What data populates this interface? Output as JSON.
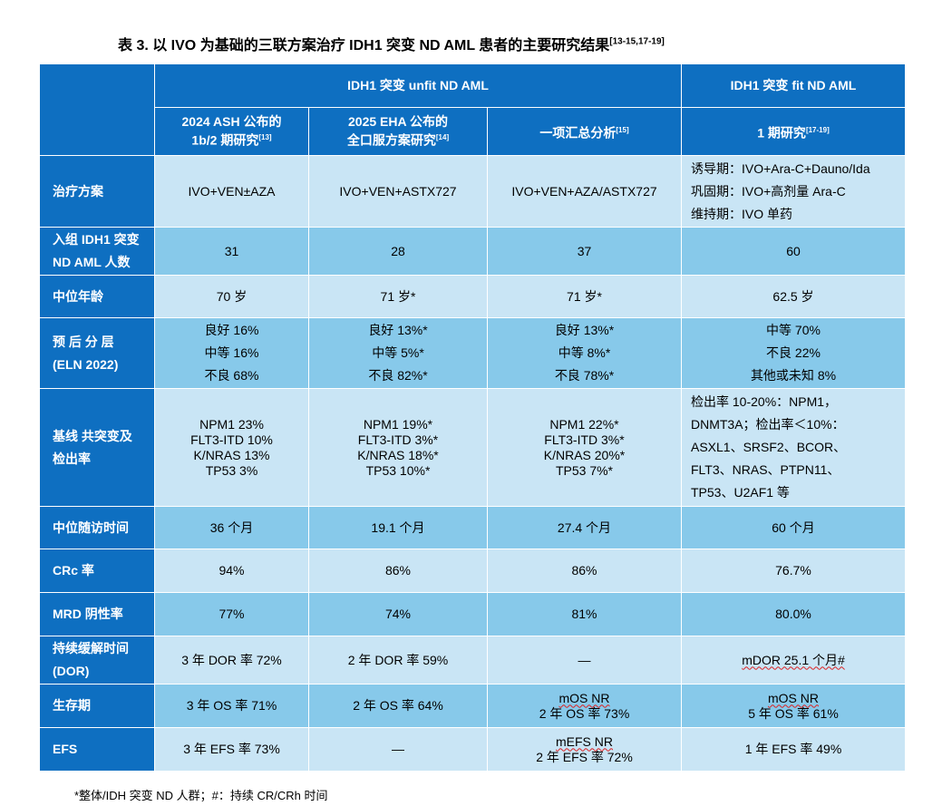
{
  "title": "表 3. 以 IVO 为基础的三联方案治疗 IDH1 突变 ND AML 患者的主要研究结果",
  "title_ref": "[13-15,17-19]",
  "groups": {
    "unfit": "IDH1 突变 unfit ND AML",
    "fit": "IDH1 突变 fit ND AML"
  },
  "studies": [
    {
      "line1": "2024 ASH 公布的",
      "line2": "1b/2 期研究",
      "ref": "[13]"
    },
    {
      "line1": "2025 EHA 公布的",
      "line2": "全口服方案研究",
      "ref": "[14]"
    },
    {
      "line1": "一项汇总分析",
      "line2": "",
      "ref": "[15]"
    },
    {
      "line1": "1 期研究",
      "line2": "",
      "ref": "[17-19]"
    }
  ],
  "rows": [
    {
      "label": [
        "治疗方案"
      ],
      "cells": [
        [
          "IVO+VEN±AZA"
        ],
        [
          "IVO+VEN+ASTX727"
        ],
        [
          "IVO+VEN+AZA/ASTX727"
        ],
        [
          "诱导期：IVO+Ara-C+Dauno/Ida",
          "巩固期：IVO+高剂量 Ara-C",
          "维持期：IVO 单药"
        ]
      ]
    },
    {
      "label": [
        "入组 IDH1 突变",
        "ND AML 人数"
      ],
      "cells": [
        [
          "31"
        ],
        [
          "28"
        ],
        [
          "37"
        ],
        [
          "60"
        ]
      ]
    },
    {
      "label": [
        "中位年龄"
      ],
      "cells": [
        [
          "70 岁"
        ],
        [
          "71 岁*"
        ],
        [
          "71 岁*"
        ],
        [
          "62.5 岁"
        ]
      ]
    },
    {
      "label": [
        "预 后 分 层",
        "(ELN 2022)"
      ],
      "cells": [
        [
          "良好 16%",
          "中等 16%",
          "不良 68%"
        ],
        [
          "良好 13%*",
          "中等 5%*",
          "不良 82%*"
        ],
        [
          "良好 13%*",
          "中等 8%*",
          "不良 78%*"
        ],
        [
          "中等 70%",
          "不良 22%",
          "其他或未知 8%"
        ]
      ]
    },
    {
      "label": [
        "基线 共突变及",
        "检出率"
      ],
      "cells": [
        [
          "NPM1 23%",
          "FLT3-ITD 10%",
          "K/NRAS 13%",
          "TP53 3%"
        ],
        [
          "NPM1 19%*",
          "FLT3-ITD 3%*",
          "K/NRAS 18%*",
          "TP53 10%*"
        ],
        [
          "NPM1 22%*",
          "FLT3-ITD 3%*",
          "K/NRAS 20%*",
          "TP53 7%*"
        ],
        [
          "检出率 10-20%：NPM1，",
          "DNMT3A；检出率＜10%：",
          "ASXL1、SRSF2、BCOR、",
          "FLT3、NRAS、PTPN11、",
          "TP53、U2AF1 等"
        ]
      ]
    },
    {
      "label": [
        "中位随访时间"
      ],
      "cells": [
        [
          "36 个月"
        ],
        [
          "19.1 个月"
        ],
        [
          "27.4 个月"
        ],
        [
          "60 个月"
        ]
      ]
    },
    {
      "label": [
        "CRc 率"
      ],
      "cells": [
        [
          "94%"
        ],
        [
          "86%"
        ],
        [
          "86%"
        ],
        [
          "76.7%"
        ]
      ]
    },
    {
      "label": [
        "MRD 阴性率"
      ],
      "cells": [
        [
          "77%"
        ],
        [
          "74%"
        ],
        [
          "81%"
        ],
        [
          "80.0%"
        ]
      ]
    },
    {
      "label": [
        "持续缓解时间",
        "(DOR)"
      ],
      "cells": [
        [
          "3 年 DOR 率 72%"
        ],
        [
          "2 年 DOR 率 59%"
        ],
        [
          "—"
        ],
        [
          "mDOR 25.1 个月#"
        ]
      ]
    },
    {
      "label": [
        "生存期"
      ],
      "cells": [
        [
          "3 年 OS 率 71%"
        ],
        [
          "2 年 OS 率 64%"
        ],
        [
          "mOS NR",
          "2 年 OS 率 73%"
        ],
        [
          "mOS NR",
          "5 年 OS 率 61%"
        ]
      ]
    },
    {
      "label": [
        "EFS"
      ],
      "cells": [
        [
          "3 年 EFS 率 73%"
        ],
        [
          "—"
        ],
        [
          "mEFS NR",
          "2 年 EFS 率 72%"
        ],
        [
          "1 年 EFS 率 49%"
        ]
      ]
    }
  ],
  "footnote": "*整体/IDH 突变 ND 人群；#：持续 CR/CRh 时间"
}
